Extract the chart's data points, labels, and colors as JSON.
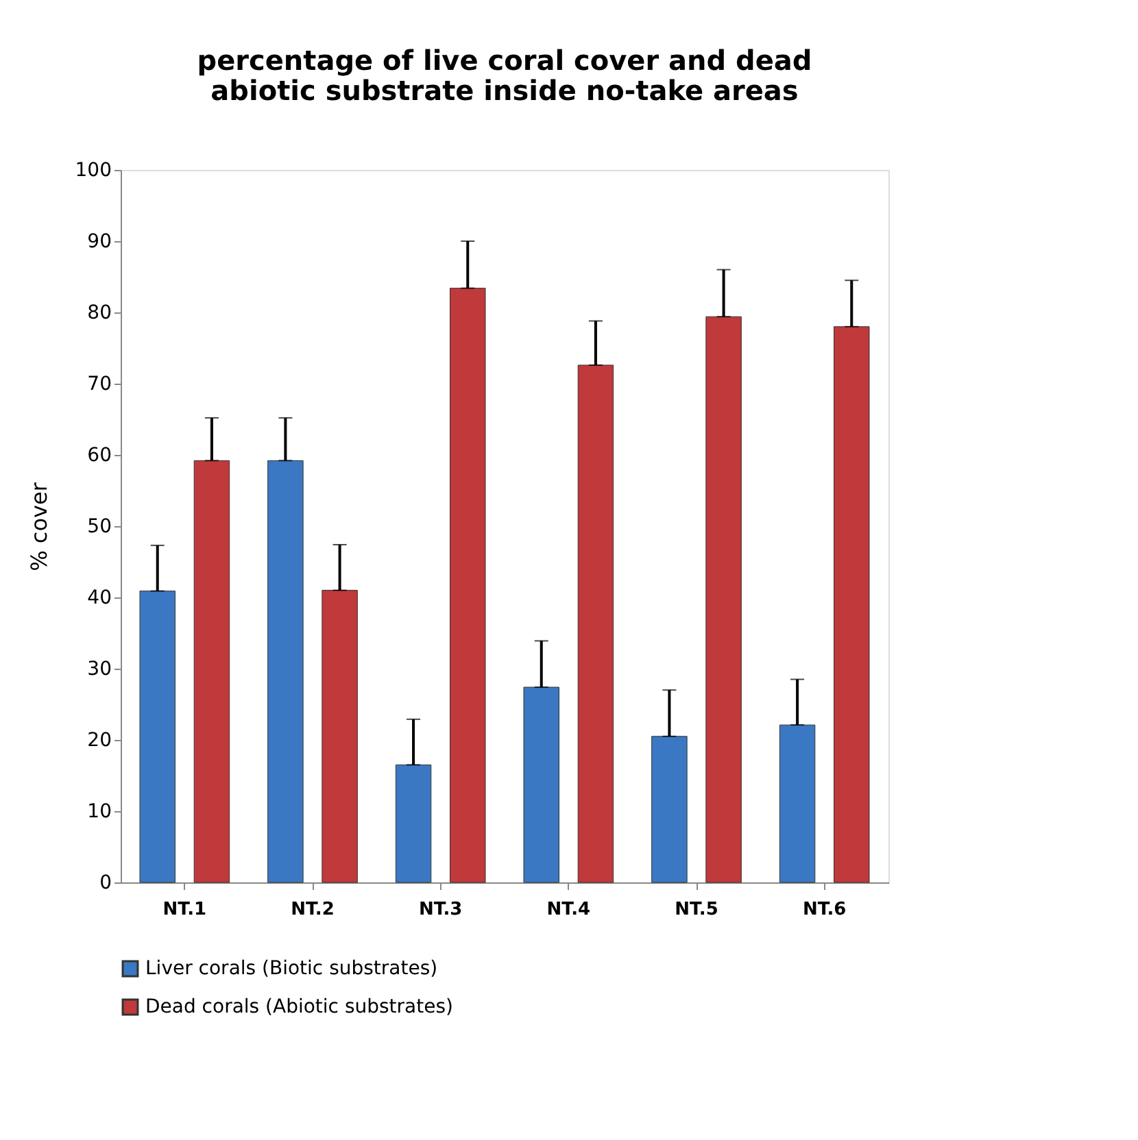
{
  "chart_data": {
    "type": "bar",
    "title": [
      "percentage of live coral cover and dead",
      "abiotic substrate inside no-take areas"
    ],
    "ylabel": "% cover",
    "categories": [
      "NT.1",
      "NT.2",
      "NT.3",
      "NT.4",
      "NT.5",
      "NT.6"
    ],
    "series": [
      {
        "name": "Liver corals (Biotic substrates)",
        "color": "#3a78c3",
        "values": [
          40.9,
          59.2,
          16.5,
          27.4,
          20.5,
          22.1
        ],
        "errors": [
          [
            40.9,
            47.3
          ],
          [
            59.2,
            65.2
          ],
          [
            16.5,
            22.9
          ],
          [
            27.4,
            33.9
          ],
          [
            20.5,
            27.0
          ],
          [
            22.1,
            28.5
          ]
        ]
      },
      {
        "name": "Dead corals (Abiotic substrates)",
        "color": "#c0393b",
        "values": [
          59.2,
          41.0,
          83.4,
          72.6,
          79.4,
          78.0
        ],
        "errors": [
          [
            59.2,
            65.2
          ],
          [
            41.0,
            47.4
          ],
          [
            83.4,
            90.0
          ],
          [
            72.6,
            78.8
          ],
          [
            79.4,
            86.0
          ],
          [
            78.0,
            84.5
          ]
        ]
      }
    ],
    "ylim": [
      0,
      100
    ],
    "yticks": [
      0,
      10,
      20,
      30,
      40,
      50,
      60,
      70,
      80,
      90,
      100
    ],
    "grid": false,
    "legend": "bottom"
  }
}
